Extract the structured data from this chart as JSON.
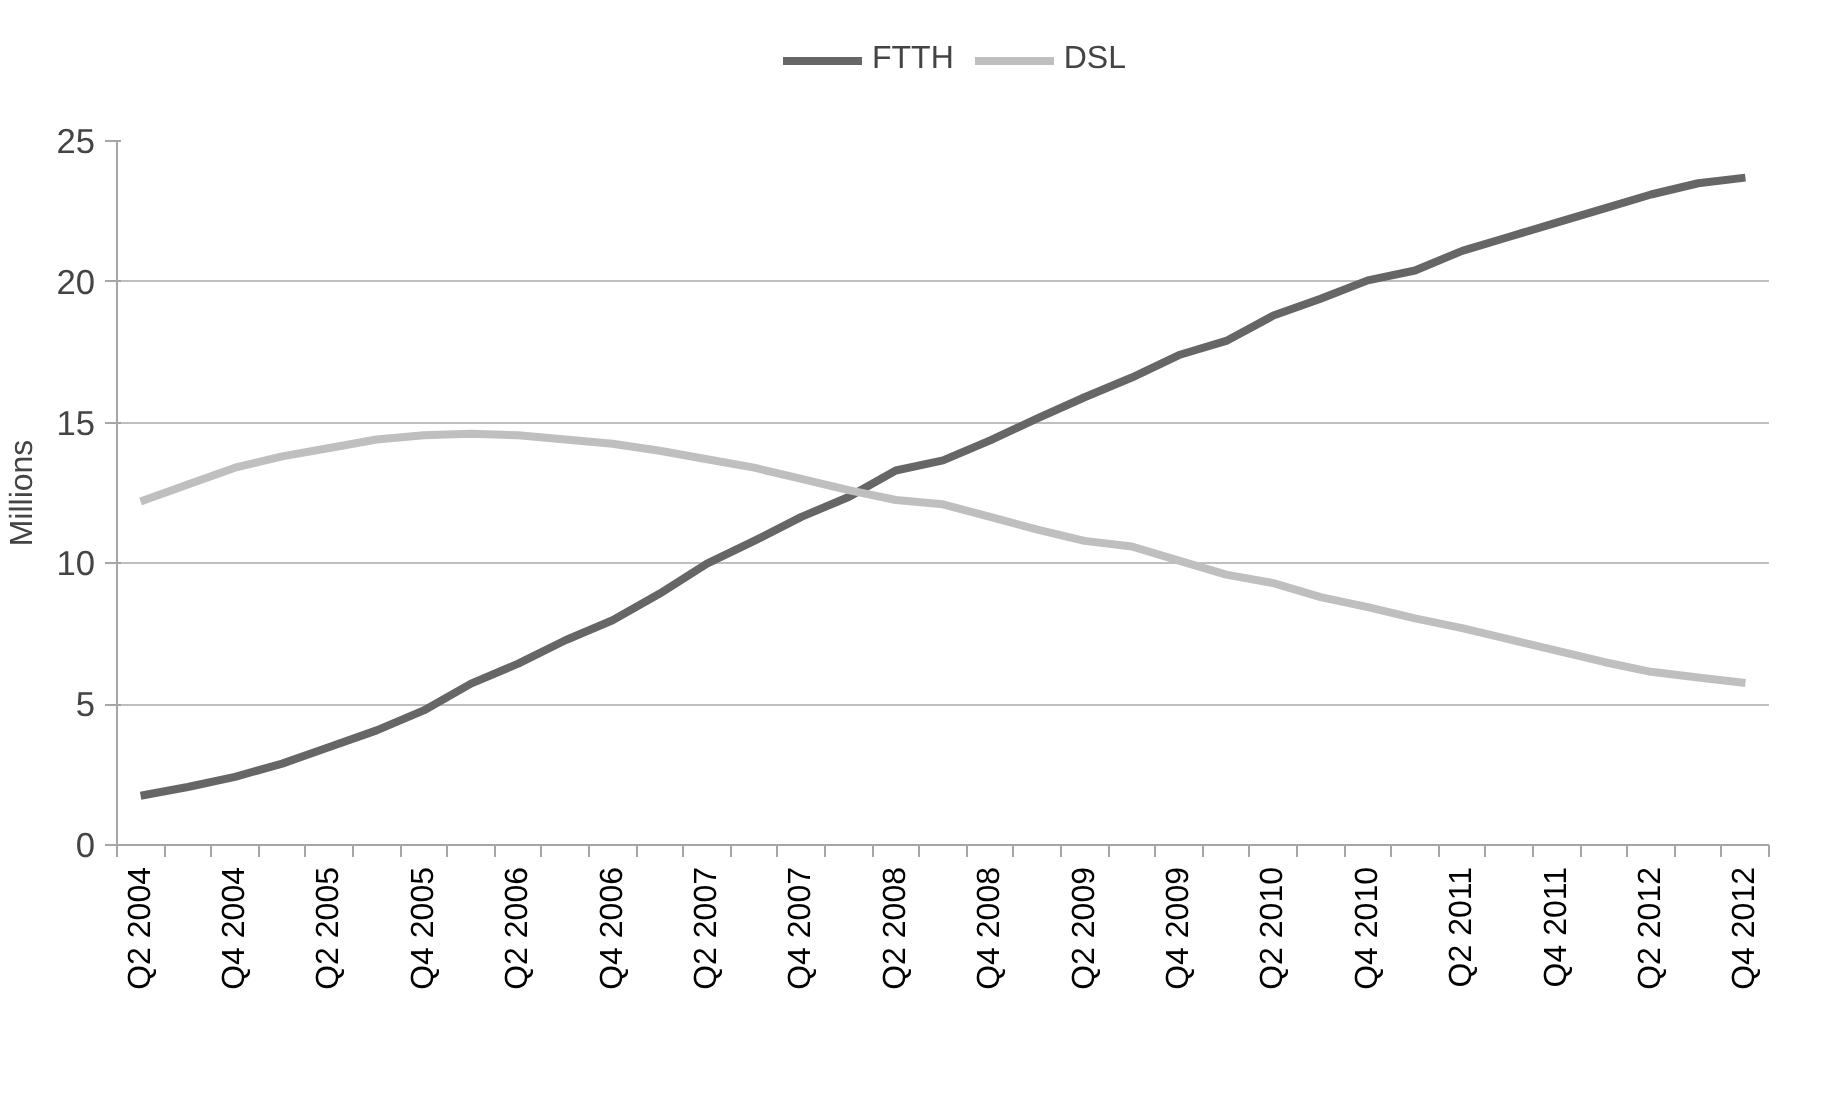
{
  "chart_data": {
    "type": "line",
    "ylabel": "Millions",
    "categories": [
      "Q2 2004",
      null,
      "Q4 2004",
      null,
      "Q2 2005",
      null,
      "Q4 2005",
      null,
      "Q2 2006",
      null,
      "Q4 2006",
      null,
      "Q2 2007",
      null,
      "Q4 2007",
      null,
      "Q2 2008",
      null,
      "Q4 2008",
      null,
      "Q2 2009",
      null,
      "Q4 2009",
      null,
      "Q2 2010",
      null,
      "Q4 2010",
      null,
      "Q2 2011",
      null,
      "Q4 2011",
      null,
      "Q2 2012",
      null,
      "Q4 2012"
    ],
    "series": [
      {
        "name": "FTTH",
        "color": "#666666",
        "values": [
          1.75,
          2.06,
          2.42,
          2.89,
          3.48,
          4.07,
          4.78,
          5.73,
          6.44,
          7.27,
          7.98,
          8.93,
          9.99,
          10.8,
          11.65,
          12.36,
          13.3,
          13.66,
          14.37,
          15.15,
          15.9,
          16.6,
          17.4,
          17.9,
          18.8,
          19.4,
          20.05,
          20.4,
          21.1,
          21.6,
          22.1,
          22.6,
          23.1,
          23.5,
          23.7
        ]
      },
      {
        "name": "DSL",
        "color": "#bfbfbf",
        "values": [
          12.2,
          12.8,
          13.4,
          13.8,
          14.1,
          14.4,
          14.55,
          14.6,
          14.55,
          14.4,
          14.25,
          14.0,
          13.7,
          13.4,
          13.0,
          12.6,
          12.25,
          12.1,
          11.65,
          11.2,
          10.8,
          10.6,
          10.1,
          9.6,
          9.3,
          8.8,
          8.45,
          8.05,
          7.7,
          7.3,
          6.9,
          6.5,
          6.15,
          5.95,
          5.75
        ]
      }
    ],
    "ylim": [
      0,
      25
    ],
    "yticks": [
      0,
      5,
      10,
      15,
      20,
      25
    ],
    "grid": "y",
    "legend": "top",
    "line_style": "solid",
    "marker": "none"
  }
}
